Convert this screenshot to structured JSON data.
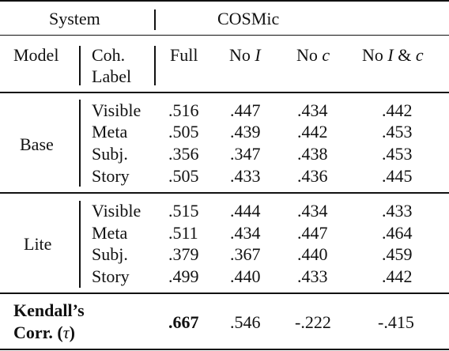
{
  "header": {
    "system": "System",
    "cosmic": "COSMic",
    "model": "Model",
    "coh_label_1": "Coh.",
    "coh_label_2": "Label",
    "col_full": "Full",
    "col_no_i_prefix": "No ",
    "col_no_i_var": "I",
    "col_no_c_prefix": "No ",
    "col_no_c_var": "c",
    "col_no_ic_prefix": "No ",
    "col_no_ic_var1": "I",
    "col_no_ic_amp": " & ",
    "col_no_ic_var2": "c"
  },
  "groups": [
    {
      "model": "Base",
      "rows": [
        {
          "label": "Visible",
          "full": ".516",
          "no_i": ".447",
          "no_c": ".434",
          "no_ic": ".442"
        },
        {
          "label": "Meta",
          "full": ".505",
          "no_i": ".439",
          "no_c": ".442",
          "no_ic": ".453"
        },
        {
          "label": "Subj.",
          "full": ".356",
          "no_i": ".347",
          "no_c": ".438",
          "no_ic": ".453"
        },
        {
          "label": "Story",
          "full": ".505",
          "no_i": ".433",
          "no_c": ".436",
          "no_ic": ".445"
        }
      ]
    },
    {
      "model": "Lite",
      "rows": [
        {
          "label": "Visible",
          "full": ".515",
          "no_i": ".444",
          "no_c": ".434",
          "no_ic": ".433"
        },
        {
          "label": "Meta",
          "full": ".511",
          "no_i": ".434",
          "no_c": ".447",
          "no_ic": ".464"
        },
        {
          "label": "Subj.",
          "full": ".379",
          "no_i": ".367",
          "no_c": ".440",
          "no_ic": ".459"
        },
        {
          "label": "Story",
          "full": ".499",
          "no_i": ".440",
          "no_c": ".433",
          "no_ic": ".442"
        }
      ]
    }
  ],
  "footer": {
    "label_1": "Kendall’s",
    "label_2_prefix": "Corr. (",
    "label_2_var": "τ",
    "label_2_suffix": ")",
    "full": ".667",
    "no_i": ".546",
    "no_c": "-.222",
    "no_ic": "-.415"
  }
}
